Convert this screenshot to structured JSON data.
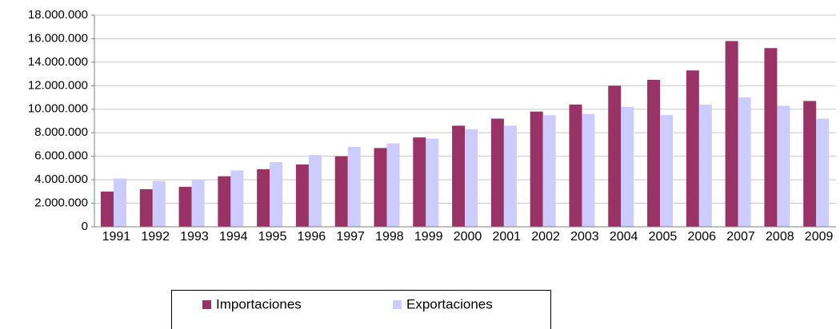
{
  "chart_data": {
    "type": "bar",
    "categories": [
      "1991",
      "1992",
      "1993",
      "1994",
      "1995",
      "1996",
      "1997",
      "1998",
      "1999",
      "2000",
      "2001",
      "2002",
      "2003",
      "2004",
      "2005",
      "2006",
      "2007",
      "2008",
      "2009"
    ],
    "series": [
      {
        "name": "Importaciones",
        "color": "#993366",
        "values": [
          3000000,
          3200000,
          3400000,
          4300000,
          4900000,
          5300000,
          6000000,
          6700000,
          7600000,
          8600000,
          9200000,
          9800000,
          10400000,
          12000000,
          12500000,
          13300000,
          15800000,
          15200000,
          10700000
        ]
      },
      {
        "name": "Exportaciones",
        "color": "#ccccff",
        "values": [
          4100000,
          3900000,
          4000000,
          4800000,
          5500000,
          6100000,
          6800000,
          7100000,
          7500000,
          8300000,
          8600000,
          9500000,
          9600000,
          10200000,
          9500000,
          10400000,
          11000000,
          10300000,
          9200000
        ]
      }
    ],
    "ylim": [
      0,
      18000000
    ],
    "yticks": [
      0,
      {
        "value": 2000000,
        "label": "2.000.000"
      },
      {
        "value": 4000000,
        "label": "4.000.000"
      },
      {
        "value": 6000000,
        "label": "6.000.000"
      },
      {
        "value": 8000000,
        "label": "8.000.000"
      },
      {
        "value": 10000000,
        "label": "10.000.000"
      },
      {
        "value": 12000000,
        "label": "12.000.000"
      },
      {
        "value": 14000000,
        "label": "14.000.000"
      },
      {
        "value": 16000000,
        "label": "16.000.000"
      },
      {
        "value": 18000000,
        "label": "18.000.000"
      }
    ],
    "grid": true,
    "legend": "bottom"
  }
}
